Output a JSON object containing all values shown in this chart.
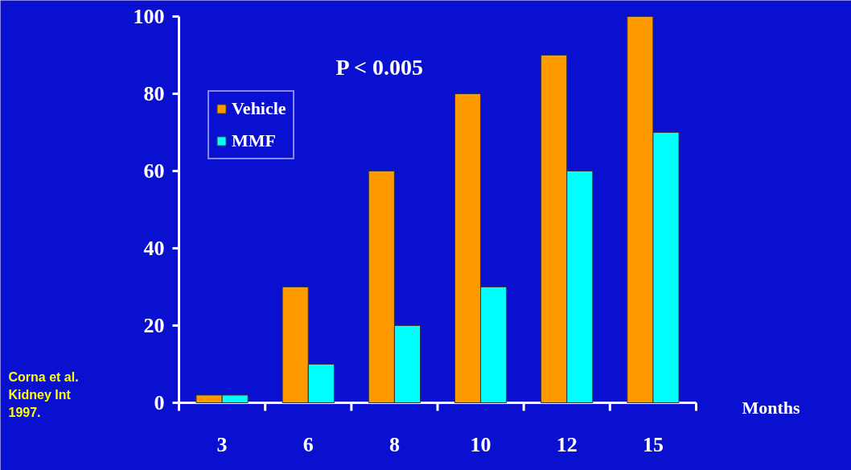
{
  "chart_data": {
    "type": "bar",
    "xlabel": "Months",
    "categories": [
      "3",
      "6",
      "8",
      "10",
      "12",
      "15"
    ],
    "series": [
      {
        "name": "Vehicle",
        "color": "#ff9900",
        "values": [
          2,
          30,
          60,
          80,
          90,
          100
        ]
      },
      {
        "name": "MMF",
        "color": "#00ffff",
        "values": [
          2,
          10,
          20,
          30,
          60,
          70
        ]
      }
    ],
    "ylim": [
      0,
      100
    ],
    "yticks": [
      0,
      20,
      40,
      60,
      80,
      100
    ],
    "grid": false,
    "legend": "top left",
    "annotations": [
      "P < 0.005",
      "Corna et al.\nKidney Int\n1997."
    ]
  }
}
